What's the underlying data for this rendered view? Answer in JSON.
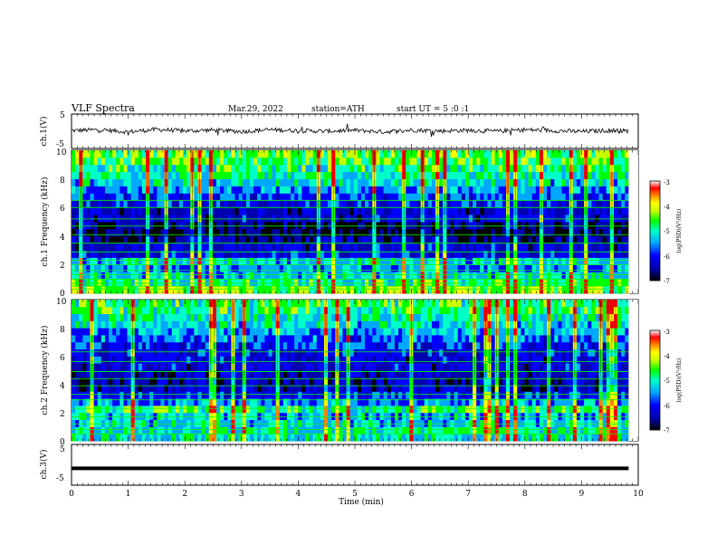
{
  "header": {
    "title": "VLF Spectra",
    "date": "Mar.29, 2022",
    "station": "station=ATH",
    "start": "start UT = 5 :0 :1"
  },
  "colors": {
    "waveform": "#000000",
    "colormap": [
      "#000000",
      "#0000b0",
      "#0000ff",
      "#00a8ff",
      "#00ffc8",
      "#00ff00",
      "#c8ff00",
      "#ffff00",
      "#ff8000",
      "#ff0000",
      "#ffffff"
    ]
  },
  "chart_data": [
    {
      "type": "line",
      "name": "ch1-waveform",
      "ylabel": "ch.1(V)",
      "ylim": [
        -5,
        5
      ],
      "yticks": [
        "5",
        "-5"
      ],
      "xlim": [
        0,
        10
      ],
      "x": [
        0,
        0.5,
        1,
        1.5,
        2,
        2.5,
        3,
        3.5,
        4,
        4.5,
        5,
        5.5,
        6,
        6.5,
        7,
        7.5,
        8,
        8.5,
        9,
        9.5,
        9.83
      ],
      "y": [
        0.2,
        0.5,
        -0.2,
        0.6,
        0.1,
        0.4,
        -0.1,
        0.5,
        0.2,
        0.0,
        0.3,
        -0.2,
        0.4,
        0.1,
        0.3,
        0.0,
        0.5,
        0.2,
        -0.1,
        0.3,
        0.1
      ],
      "grid": false
    },
    {
      "type": "heatmap",
      "name": "ch1-spectrogram",
      "ylabel": "ch.1 Frequency (kHz)",
      "ylim": [
        0,
        10
      ],
      "yticks": [
        "0",
        "2",
        "4",
        "6",
        "8",
        "10"
      ],
      "xlim": [
        0,
        9.83
      ],
      "colorbar": {
        "label": "log(PSD)(V²/Hz)",
        "range": [
          -7,
          -3
        ],
        "ticks": [
          "-3",
          "-4",
          "-5",
          "-6",
          "-7"
        ]
      },
      "freq_khz": [
        0.25,
        0.75,
        1.25,
        1.75,
        2.25,
        2.75,
        3.25,
        3.75,
        4.25,
        4.75,
        5.25,
        5.75,
        6.25,
        6.75,
        7.25,
        7.75,
        8.25,
        8.75,
        9.25,
        9.75
      ],
      "log_psd_mean": [
        -4.2,
        -4.6,
        -5.0,
        -5.3,
        -5.0,
        -5.9,
        -6.0,
        -6.3,
        -6.6,
        -6.4,
        -6.0,
        -6.1,
        -5.8,
        -5.6,
        -5.3,
        -5.0,
        -4.8,
        -4.6,
        -4.4,
        -4.3
      ],
      "constant_lines_khz": [
        0.3,
        0.5,
        0.7,
        1.0,
        1.3,
        1.6,
        2.0,
        2.3,
        2.9,
        3.5,
        4.1,
        4.7,
        5.2,
        6.0,
        6.5
      ],
      "grid": false
    },
    {
      "type": "heatmap",
      "name": "ch2-spectrogram",
      "ylabel": "ch.2 Frequency (kHz)",
      "ylim": [
        0,
        10
      ],
      "yticks": [
        "0",
        "2",
        "4",
        "6",
        "8",
        "10"
      ],
      "xlim": [
        0,
        9.83
      ],
      "colorbar": {
        "label": "log(PSD)(V²/Hz)",
        "range": [
          -7,
          -3
        ],
        "ticks": [
          "-3",
          "-4",
          "-5",
          "-6",
          "-7"
        ]
      },
      "freq_khz": [
        0.25,
        0.75,
        1.25,
        1.75,
        2.25,
        2.75,
        3.25,
        3.75,
        4.25,
        4.75,
        5.25,
        5.75,
        6.25,
        6.75,
        7.25,
        7.75,
        8.25,
        8.75,
        9.25,
        9.75
      ],
      "log_psd_mean": [
        -4.9,
        -4.8,
        -5.0,
        -5.1,
        -4.6,
        -5.3,
        -5.8,
        -6.1,
        -6.2,
        -6.1,
        -6.0,
        -6.0,
        -5.8,
        -5.7,
        -5.5,
        -5.3,
        -5.0,
        -4.8,
        -4.6,
        -4.5
      ],
      "constant_lines_khz": [
        0.5,
        0.8,
        1.2,
        1.7,
        2.3,
        2.9,
        3.3,
        3.9,
        4.4,
        4.9,
        5.6,
        6.3
      ],
      "grid": false
    },
    {
      "type": "line",
      "name": "ch3-waveform",
      "ylabel": "ch.3(V)",
      "ylim": [
        -5,
        5
      ],
      "yticks": [
        "5",
        "-5"
      ],
      "xlim": [
        0,
        10
      ],
      "xlabel": "Time (min)",
      "xticks": [
        "0",
        "1",
        "2",
        "3",
        "4",
        "5",
        "6",
        "7",
        "8",
        "9",
        "10"
      ],
      "x": [
        0,
        9.83
      ],
      "y": [
        -2.0,
        -2.0
      ],
      "grid": false
    }
  ]
}
